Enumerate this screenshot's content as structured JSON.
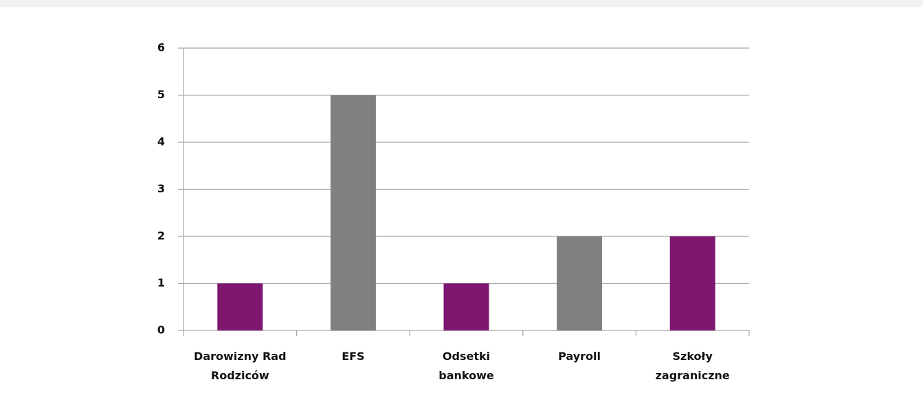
{
  "chart_data": {
    "type": "bar",
    "categories": [
      "Darowizny Rad Rodziców",
      "EFS",
      "Odsetki bankowe",
      "Payroll",
      "Szkoły zagraniczne"
    ],
    "values": [
      1,
      5,
      1,
      2,
      2
    ],
    "colors": [
      "#7d176f",
      "#808080",
      "#7d176f",
      "#808080",
      "#7d176f"
    ],
    "ylim": [
      0,
      6
    ],
    "yticks": [
      0,
      1,
      2,
      3,
      4,
      5,
      6
    ],
    "grid": true
  }
}
